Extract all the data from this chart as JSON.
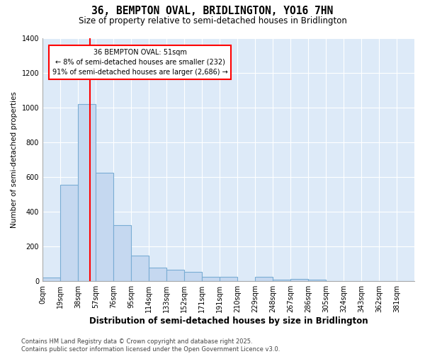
{
  "title": "36, BEMPTON OVAL, BRIDLINGTON, YO16 7HN",
  "subtitle": "Size of property relative to semi-detached houses in Bridlington",
  "xlabel": "Distribution of semi-detached houses by size in Bridlington",
  "ylabel": "Number of semi-detached properties",
  "bin_labels": [
    "0sqm",
    "19sqm",
    "38sqm",
    "57sqm",
    "76sqm",
    "95sqm",
    "114sqm",
    "133sqm",
    "152sqm",
    "171sqm",
    "191sqm",
    "210sqm",
    "229sqm",
    "248sqm",
    "267sqm",
    "286sqm",
    "305sqm",
    "324sqm",
    "343sqm",
    "362sqm",
    "381sqm"
  ],
  "bar_heights": [
    20,
    555,
    1020,
    625,
    325,
    148,
    80,
    65,
    52,
    25,
    25,
    0,
    25,
    10,
    15,
    10,
    0,
    0,
    0,
    0,
    0
  ],
  "bar_color": "#c5d8f0",
  "bar_edge_color": "#7aadd4",
  "vline_x_bin": 2.68,
  "annotation_text": "36 BEMPTON OVAL: 51sqm\n← 8% of semi-detached houses are smaller (232)\n91% of semi-detached houses are larger (2,686) →",
  "annotation_box_color": "white",
  "annotation_box_edge_color": "red",
  "vline_color": "red",
  "ylim": [
    0,
    1400
  ],
  "yticks": [
    0,
    200,
    400,
    600,
    800,
    1000,
    1200,
    1400
  ],
  "fig_bg_color": "white",
  "plot_bg_color": "#ddeaf8",
  "grid_color": "white",
  "footer": "Contains HM Land Registry data © Crown copyright and database right 2025.\nContains public sector information licensed under the Open Government Licence v3.0.",
  "title_fontsize": 10.5,
  "subtitle_fontsize": 8.5,
  "xlabel_fontsize": 8.5,
  "ylabel_fontsize": 7.5,
  "tick_fontsize": 7,
  "annotation_fontsize": 7,
  "footer_fontsize": 6
}
